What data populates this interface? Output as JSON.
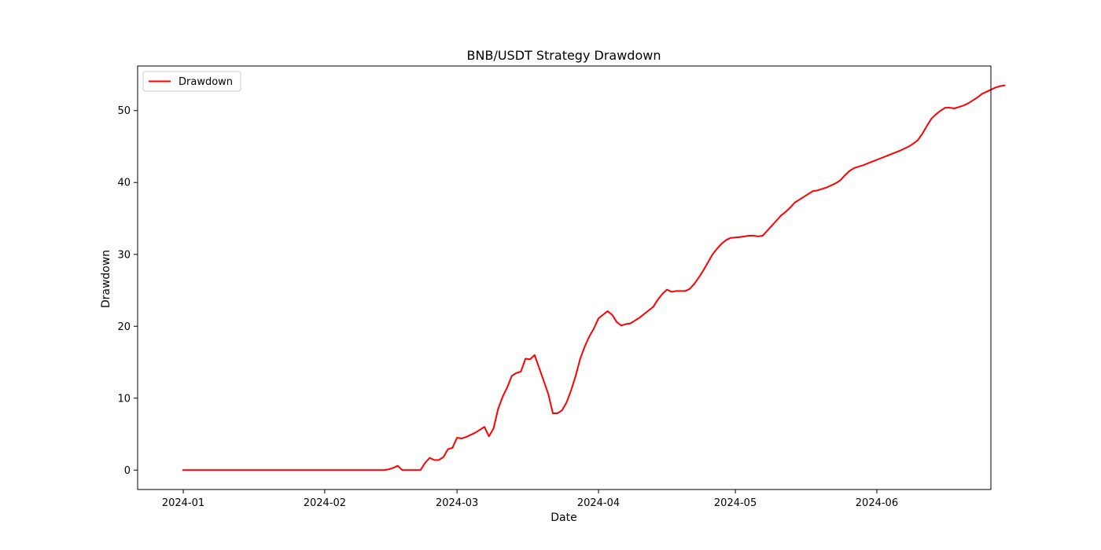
{
  "chart_data": {
    "type": "line",
    "title": "BNB/USDT Strategy Drawdown",
    "xlabel": "Date",
    "ylabel": "Drawdown",
    "x_ticks": [
      "2024-01",
      "2024-02",
      "2024-03",
      "2024-04",
      "2024-05",
      "2024-06"
    ],
    "y_ticks": [
      0,
      10,
      20,
      30,
      40,
      50
    ],
    "xlim": [
      "2023-12-22",
      "2024-06-26"
    ],
    "ylim": [
      -2.7,
      56.2
    ],
    "legend": {
      "position": "top-left",
      "entries": [
        "Drawdown"
      ]
    },
    "grid": false,
    "series": [
      {
        "name": "Drawdown",
        "color": "#ff0000",
        "points": [
          [
            "2024-01-01",
            0
          ],
          [
            "2024-01-15",
            0
          ],
          [
            "2024-02-01",
            0
          ],
          [
            "2024-02-14",
            0
          ],
          [
            "2024-02-15",
            0.1
          ],
          [
            "2024-02-16",
            0.3
          ],
          [
            "2024-02-17",
            0.6
          ],
          [
            "2024-02-18",
            0
          ],
          [
            "2024-02-21",
            0
          ],
          [
            "2024-02-22",
            0
          ],
          [
            "2024-02-23",
            1.0
          ],
          [
            "2024-02-24",
            1.7
          ],
          [
            "2024-02-25",
            1.4
          ],
          [
            "2024-02-26",
            1.4
          ],
          [
            "2024-02-27",
            1.8
          ],
          [
            "2024-02-28",
            2.9
          ],
          [
            "2024-02-29",
            3.1
          ],
          [
            "2024-03-01",
            4.5
          ],
          [
            "2024-03-02",
            4.4
          ],
          [
            "2024-03-03",
            4.6
          ],
          [
            "2024-03-05",
            5.2
          ],
          [
            "2024-03-07",
            6.0
          ],
          [
            "2024-03-08",
            4.7
          ],
          [
            "2024-03-09",
            5.8
          ],
          [
            "2024-03-10",
            8.5
          ],
          [
            "2024-03-11",
            10.2
          ],
          [
            "2024-03-12",
            11.5
          ],
          [
            "2024-03-13",
            13.1
          ],
          [
            "2024-03-14",
            13.5
          ],
          [
            "2024-03-15",
            13.7
          ],
          [
            "2024-03-16",
            15.5
          ],
          [
            "2024-03-17",
            15.4
          ],
          [
            "2024-03-18",
            16.0
          ],
          [
            "2024-03-19",
            14.2
          ],
          [
            "2024-03-21",
            10.6
          ],
          [
            "2024-03-22",
            7.9
          ],
          [
            "2024-03-23",
            7.9
          ],
          [
            "2024-03-24",
            8.3
          ],
          [
            "2024-03-25",
            9.4
          ],
          [
            "2024-03-26",
            11.1
          ],
          [
            "2024-03-27",
            13.1
          ],
          [
            "2024-03-28",
            15.5
          ],
          [
            "2024-03-29",
            17.2
          ],
          [
            "2024-03-30",
            18.6
          ],
          [
            "2024-03-31",
            19.7
          ],
          [
            "2024-04-01",
            21.1
          ],
          [
            "2024-04-02",
            21.6
          ],
          [
            "2024-04-03",
            22.1
          ],
          [
            "2024-04-04",
            21.6
          ],
          [
            "2024-04-05",
            20.6
          ],
          [
            "2024-04-06",
            20.1
          ],
          [
            "2024-04-07",
            20.3
          ],
          [
            "2024-04-08",
            20.4
          ],
          [
            "2024-04-10",
            21.2
          ],
          [
            "2024-04-12",
            22.2
          ],
          [
            "2024-04-13",
            22.7
          ],
          [
            "2024-04-14",
            23.7
          ],
          [
            "2024-04-15",
            24.5
          ],
          [
            "2024-04-16",
            25.1
          ],
          [
            "2024-04-17",
            24.8
          ],
          [
            "2024-04-18",
            24.9
          ],
          [
            "2024-04-19",
            24.9
          ],
          [
            "2024-04-20",
            24.9
          ],
          [
            "2024-04-21",
            25.2
          ],
          [
            "2024-04-22",
            25.9
          ],
          [
            "2024-04-23",
            26.8
          ],
          [
            "2024-04-24",
            27.8
          ],
          [
            "2024-04-25",
            28.9
          ],
          [
            "2024-04-26",
            30.0
          ],
          [
            "2024-04-27",
            30.8
          ],
          [
            "2024-04-28",
            31.5
          ],
          [
            "2024-04-29",
            32.0
          ],
          [
            "2024-04-30",
            32.3
          ],
          [
            "2024-05-02",
            32.4
          ],
          [
            "2024-05-03",
            32.5
          ],
          [
            "2024-05-04",
            32.6
          ],
          [
            "2024-05-05",
            32.6
          ],
          [
            "2024-05-06",
            32.5
          ],
          [
            "2024-05-07",
            32.6
          ],
          [
            "2024-05-08",
            33.3
          ],
          [
            "2024-05-09",
            34.0
          ],
          [
            "2024-05-10",
            34.7
          ],
          [
            "2024-05-11",
            35.4
          ],
          [
            "2024-05-12",
            35.9
          ],
          [
            "2024-05-13",
            36.5
          ],
          [
            "2024-05-14",
            37.2
          ],
          [
            "2024-05-15",
            37.6
          ],
          [
            "2024-05-16",
            38.0
          ],
          [
            "2024-05-17",
            38.4
          ],
          [
            "2024-05-18",
            38.8
          ],
          [
            "2024-05-19",
            38.9
          ],
          [
            "2024-05-20",
            39.1
          ],
          [
            "2024-05-21",
            39.3
          ],
          [
            "2024-05-22",
            39.6
          ],
          [
            "2024-05-23",
            39.9
          ],
          [
            "2024-05-24",
            40.3
          ],
          [
            "2024-05-25",
            41.0
          ],
          [
            "2024-05-26",
            41.6
          ],
          [
            "2024-05-27",
            42.0
          ],
          [
            "2024-05-29",
            42.4
          ],
          [
            "2024-05-31",
            42.9
          ],
          [
            "2024-06-02",
            43.4
          ],
          [
            "2024-06-04",
            43.9
          ],
          [
            "2024-06-06",
            44.4
          ],
          [
            "2024-06-08",
            45.0
          ],
          [
            "2024-06-09",
            45.4
          ],
          [
            "2024-06-10",
            45.9
          ],
          [
            "2024-06-11",
            46.8
          ],
          [
            "2024-06-12",
            47.9
          ],
          [
            "2024-06-13",
            48.9
          ],
          [
            "2024-06-14",
            49.5
          ],
          [
            "2024-06-15",
            50.0
          ],
          [
            "2024-06-16",
            50.4
          ],
          [
            "2024-06-17",
            50.4
          ],
          [
            "2024-06-18",
            50.3
          ],
          [
            "2024-06-19",
            50.5
          ],
          [
            "2024-06-20",
            50.7
          ],
          [
            "2024-06-21",
            51.0
          ],
          [
            "2024-06-22",
            51.4
          ],
          [
            "2024-06-23",
            51.8
          ],
          [
            "2024-06-24",
            52.3
          ],
          [
            "2024-06-25",
            52.6
          ],
          [
            "2024-06-26",
            52.9
          ],
          [
            "2024-06-27",
            53.2
          ],
          [
            "2024-06-28",
            53.4
          ],
          [
            "2024-06-29",
            53.5
          ]
        ]
      }
    ]
  }
}
